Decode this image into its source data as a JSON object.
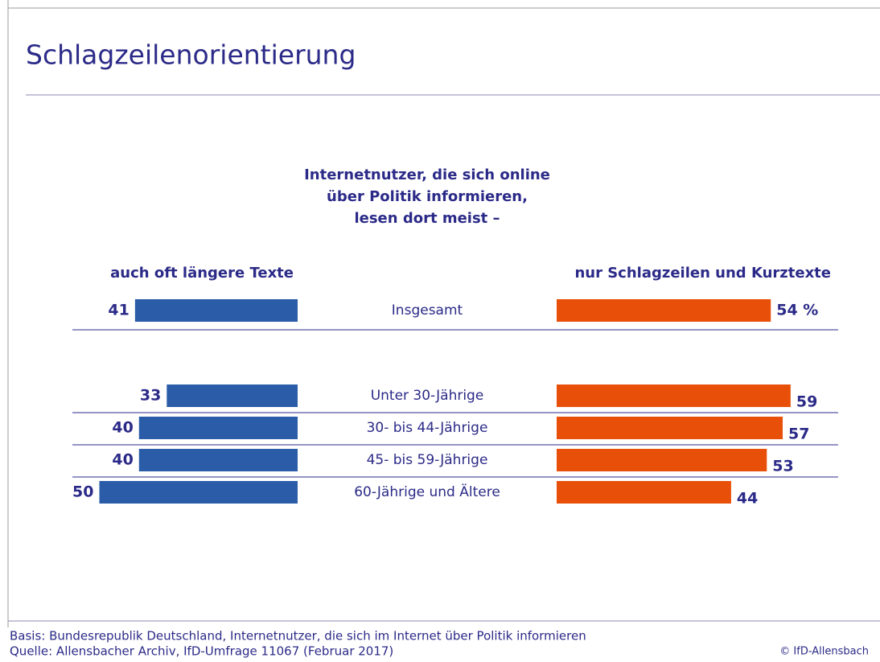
{
  "chart_data": {
    "type": "butterfly-bar",
    "title": "Schlagzeilenorientierung",
    "subtitle": [
      "Internetnutzer, die sich online",
      "über Politik informieren,",
      "lesen dort meist –"
    ],
    "categories": [
      "Insgesamt",
      "Unter 30-Jährige",
      "30- bis 44-Jährige",
      "45- bis 59-Jährige",
      "60-Jährige und Ältere"
    ],
    "series": [
      {
        "name": "auch oft längere Texte",
        "color": "#2a5ca8",
        "values": [
          41,
          33,
          40,
          40,
          50
        ]
      },
      {
        "name": "nur Schlagzeilen und Kurztexte",
        "color": "#e8500a",
        "values": [
          54,
          59,
          57,
          53,
          44
        ],
        "value_labels": [
          "54 %",
          "59",
          "57",
          "53",
          "44"
        ]
      }
    ],
    "footnotes": [
      "Basis: Bundesrepublik Deutschland, Internetnutzer, die sich im Internet über Politik informieren",
      "Quelle: Allensbacher Archiv, IfD-Umfrage 11067 (Februar 2017)"
    ],
    "copyright": "© IfD-Allensbach"
  }
}
